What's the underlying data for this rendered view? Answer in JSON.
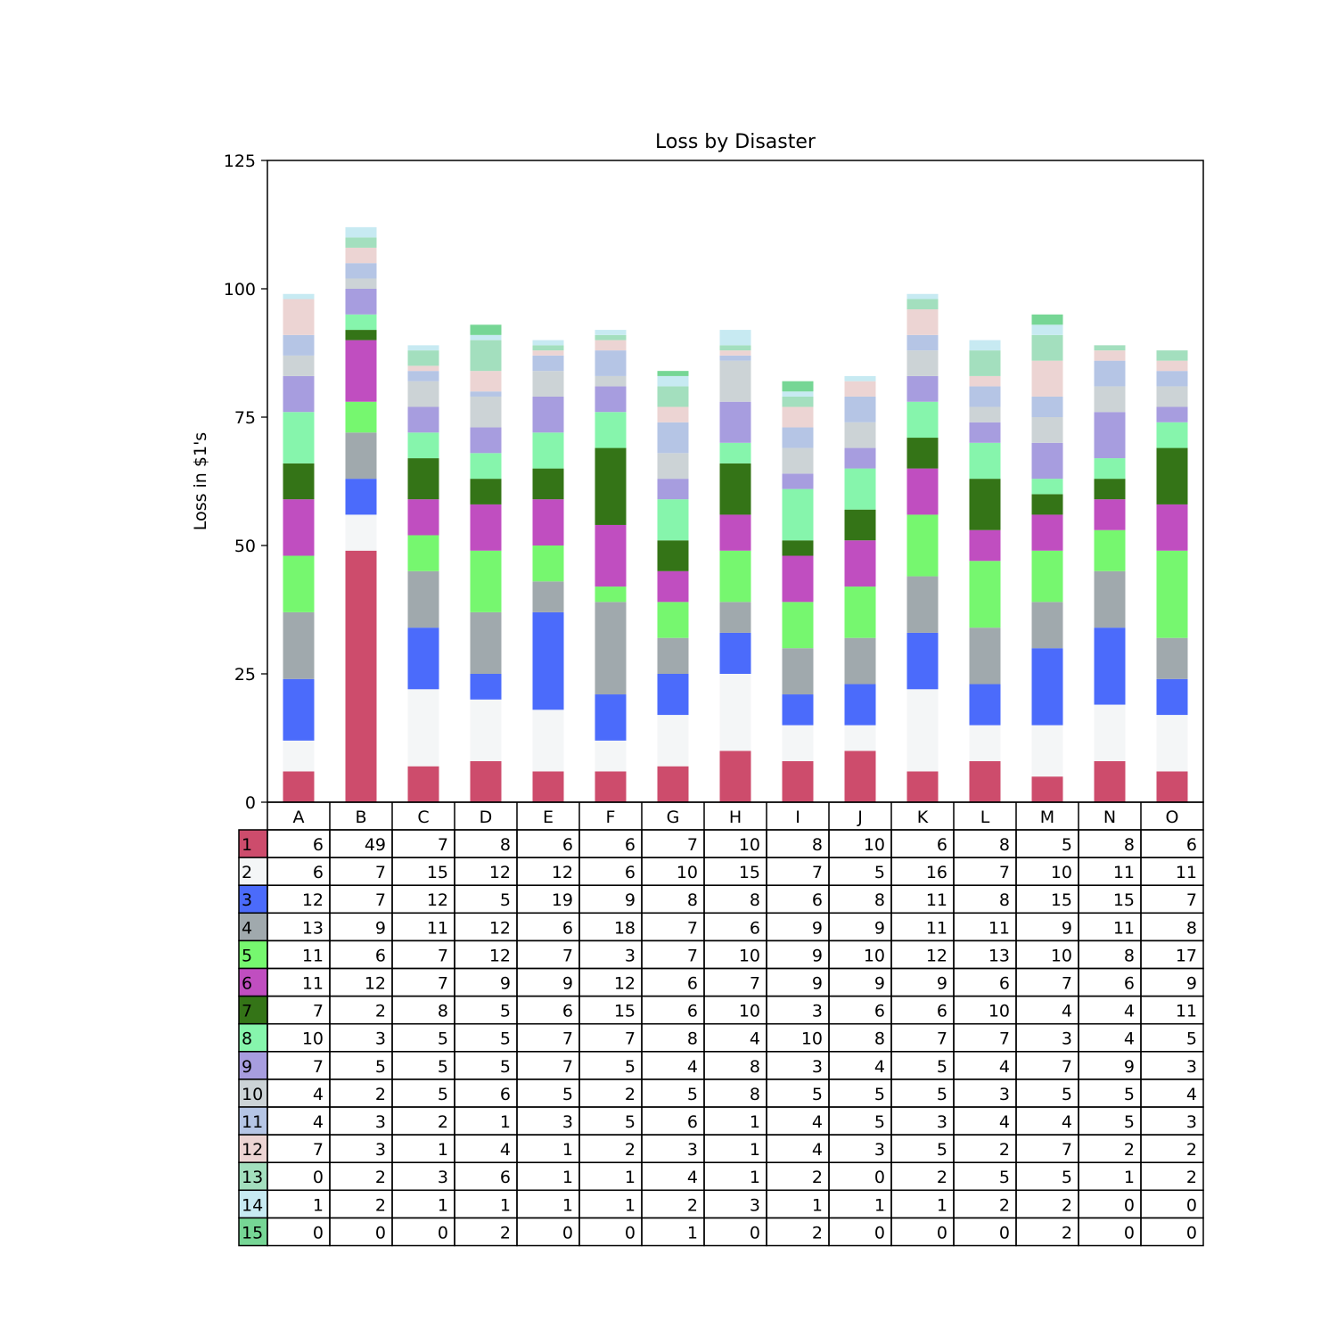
{
  "chart_data": {
    "type": "bar",
    "stacked": true,
    "title": "Loss by Disaster",
    "xlabel": "",
    "ylabel": "Loss in $1's",
    "ylim": [
      0,
      125
    ],
    "yticks": [
      0,
      25,
      50,
      75,
      100,
      125
    ],
    "grid": false,
    "legend": "table-below",
    "categories": [
      "A",
      "B",
      "C",
      "D",
      "E",
      "F",
      "G",
      "H",
      "I",
      "J",
      "K",
      "L",
      "M",
      "N",
      "O"
    ],
    "series": [
      {
        "name": "1",
        "color": "#cd4c6c",
        "values": [
          6,
          49,
          7,
          8,
          6,
          6,
          7,
          10,
          8,
          10,
          6,
          8,
          5,
          8,
          6
        ]
      },
      {
        "name": "2",
        "color": "#f4f6f7",
        "values": [
          6,
          7,
          15,
          12,
          12,
          6,
          10,
          15,
          7,
          5,
          16,
          7,
          10,
          11,
          11
        ]
      },
      {
        "name": "3",
        "color": "#4b6bfb",
        "values": [
          12,
          7,
          12,
          5,
          19,
          9,
          8,
          8,
          6,
          8,
          11,
          8,
          15,
          15,
          7
        ]
      },
      {
        "name": "4",
        "color": "#a0a9ad",
        "values": [
          13,
          9,
          11,
          12,
          6,
          18,
          7,
          6,
          9,
          9,
          11,
          11,
          9,
          11,
          8
        ]
      },
      {
        "name": "5",
        "color": "#76f76f",
        "values": [
          11,
          6,
          7,
          12,
          7,
          3,
          7,
          10,
          9,
          10,
          12,
          13,
          10,
          8,
          17
        ]
      },
      {
        "name": "6",
        "color": "#c04ec0",
        "values": [
          11,
          12,
          7,
          9,
          9,
          12,
          6,
          7,
          9,
          9,
          9,
          6,
          7,
          6,
          9
        ]
      },
      {
        "name": "7",
        "color": "#347417",
        "values": [
          7,
          2,
          8,
          5,
          6,
          15,
          6,
          10,
          3,
          6,
          6,
          10,
          4,
          4,
          11
        ]
      },
      {
        "name": "8",
        "color": "#86f5ac",
        "values": [
          10,
          3,
          5,
          5,
          7,
          7,
          8,
          4,
          10,
          8,
          7,
          7,
          3,
          4,
          5
        ]
      },
      {
        "name": "9",
        "color": "#a79ddf",
        "values": [
          7,
          5,
          5,
          5,
          7,
          5,
          4,
          8,
          3,
          4,
          5,
          4,
          7,
          9,
          3
        ]
      },
      {
        "name": "10",
        "color": "#ccd3d6",
        "values": [
          4,
          2,
          5,
          6,
          5,
          2,
          5,
          8,
          5,
          5,
          5,
          3,
          5,
          5,
          4
        ]
      },
      {
        "name": "11",
        "color": "#b5c5e5",
        "values": [
          4,
          3,
          2,
          1,
          3,
          5,
          6,
          1,
          4,
          5,
          3,
          4,
          4,
          5,
          3
        ]
      },
      {
        "name": "12",
        "color": "#ecd4d3",
        "values": [
          7,
          3,
          1,
          4,
          1,
          2,
          3,
          1,
          4,
          3,
          5,
          2,
          7,
          2,
          2
        ]
      },
      {
        "name": "13",
        "color": "#a3dfbe",
        "values": [
          0,
          2,
          3,
          6,
          1,
          1,
          4,
          1,
          2,
          0,
          2,
          5,
          5,
          1,
          2
        ]
      },
      {
        "name": "14",
        "color": "#c7eaf2",
        "values": [
          1,
          2,
          1,
          1,
          1,
          1,
          2,
          3,
          1,
          1,
          1,
          2,
          2,
          0,
          0
        ]
      },
      {
        "name": "15",
        "color": "#76d695",
        "values": [
          0,
          0,
          0,
          2,
          0,
          0,
          1,
          0,
          2,
          0,
          0,
          0,
          2,
          0,
          0
        ]
      }
    ]
  }
}
